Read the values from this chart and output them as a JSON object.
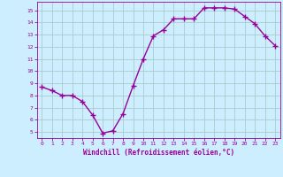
{
  "x": [
    0,
    1,
    2,
    3,
    4,
    5,
    6,
    7,
    8,
    9,
    10,
    11,
    12,
    13,
    14,
    15,
    16,
    17,
    18,
    19,
    20,
    21,
    22,
    23
  ],
  "y": [
    8.7,
    8.4,
    8.0,
    8.0,
    7.5,
    6.4,
    4.9,
    5.1,
    6.5,
    8.8,
    11.0,
    12.9,
    13.4,
    14.3,
    14.3,
    14.3,
    15.2,
    15.2,
    15.2,
    15.1,
    14.5,
    13.9,
    12.9,
    12.1
  ],
  "line_color": "#990099",
  "marker": "+",
  "marker_size": 4,
  "bg_color": "#cceeff",
  "grid_color": "#aacccc",
  "xlabel": "Windchill (Refroidissement éolien,°C)",
  "xlabel_color": "#990099",
  "ylabel_ticks": [
    5,
    6,
    7,
    8,
    9,
    10,
    11,
    12,
    13,
    14,
    15
  ],
  "xlim": [
    -0.5,
    23.5
  ],
  "ylim": [
    4.5,
    15.7
  ],
  "tick_color": "#990099",
  "tick_label_color": "#990099",
  "line_width": 1.0
}
